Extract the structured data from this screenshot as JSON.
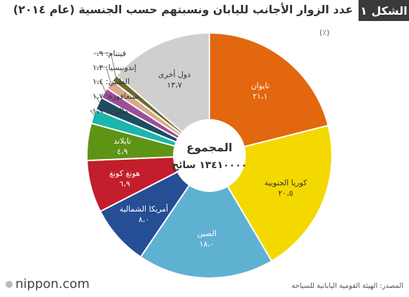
{
  "figure": {
    "label": "الشكل",
    "number": "١",
    "title": "عدد الزوار الأجانب لليابان ونسبتهم حسب الجنسية (عام ٢٠١٤)"
  },
  "unit": "(٪)",
  "source": "المصدر: الهيئة القومية اليابانية للسياحة",
  "logo": "nippon.com",
  "chart_data": {
    "type": "pie",
    "title": "عدد الزوار الأجانب لليابان ونسبتهم حسب الجنسية (عام ٢٠١٤)",
    "center_label": "المجموع",
    "center_value": "١٣٤١٠٠٠٠ سائح",
    "slices": [
      {
        "name": "تايوان",
        "value": 21.1,
        "label": "٢١،١",
        "color": "#e2670f"
      },
      {
        "name": "كوريا الجنوبية",
        "value": 20.5,
        "label": "٢٠،٥",
        "color": "#f4d900"
      },
      {
        "name": "الصين",
        "value": 18.0,
        "label": "١٨،٠",
        "color": "#5fb1d2"
      },
      {
        "name": "أمريكا الشمالية",
        "value": 8.0,
        "label": "٨،٠",
        "color": "#254e94"
      },
      {
        "name": "هونغ كونغ",
        "value": 6.9,
        "label": "٦،٩",
        "color": "#c21e2b"
      },
      {
        "name": "تايلاند",
        "value": 4.9,
        "label": "٤،٩",
        "color": "#5e9416"
      },
      {
        "name": "ماليزيا",
        "value": 1.9,
        "label": "١،٩",
        "color": "#1bb5ac"
      },
      {
        "name": "سنغافورة",
        "value": 1.7,
        "label": "١،٧",
        "color": "#1e4d63"
      },
      {
        "name": "الفلبين",
        "value": 1.4,
        "label": "١،٤",
        "color": "#9b4f9a"
      },
      {
        "name": "إندونيسيا",
        "value": 1.2,
        "label": "١،٢",
        "color": "#dba98c"
      },
      {
        "name": "فيتنام",
        "value": 0.9,
        "label": "٠،٩",
        "color": "#6a6a2c"
      },
      {
        "name": "دول أخرى",
        "value": 13.7,
        "label": "١٣،٧",
        "color": "#cfcfcf"
      }
    ]
  }
}
